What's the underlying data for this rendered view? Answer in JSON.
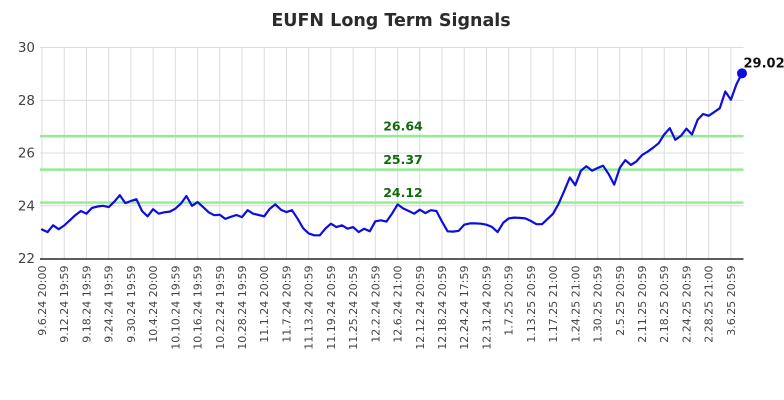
{
  "page": {
    "background": "#ffffff"
  },
  "chart_data": {
    "type": "line",
    "title": "EUFN Long Term Signals",
    "title_color": "#2b2b2b",
    "line_color": "#0d0de0",
    "grid_color": "#dcdcdc",
    "axis_color": "#262626",
    "tick_label_color": "#444444",
    "signal_line_color": "#90ee90",
    "signal_label_color": "#0e6b0e",
    "last_label_color": "#111111",
    "grid": true,
    "ylim": [
      22,
      30
    ],
    "y_ticks": [
      22,
      24,
      26,
      28,
      30
    ],
    "ticks_every_n_points": 4,
    "x_tick_labels": [
      "9.6.24 20:00",
      "9.12.24 19:59",
      "9.18.24 19:59",
      "9.24.24 19:59",
      "9.30.24 19:59",
      "10.4.24 20:00",
      "10.10.24 19:59",
      "10.16.24 19:59",
      "10.22.24 19:59",
      "10.28.24 19:59",
      "11.1.24 20:00",
      "11.7.24 20:59",
      "11.13.24 20:59",
      "11.19.24 20:59",
      "11.25.24 20:59",
      "12.2.24 20:59",
      "12.6.24 21:00",
      "12.12.24 20:59",
      "12.18.24 20:59",
      "12.24.24 17:59",
      "12.31.24 20:59",
      "1.7.25 20:59",
      "1.13.25 20:59",
      "1.17.25 21:00",
      "1.24.25 21:00",
      "1.30.25 20:59",
      "2.5.25 20:59",
      "2.11.25 20:59",
      "2.18.25 20:59",
      "2.24.25 20:59",
      "2.28.25 21:00",
      "3.6.25 20:59"
    ],
    "signal_lines": [
      {
        "value": 26.64,
        "label": "26.64"
      },
      {
        "value": 25.37,
        "label": "25.37"
      },
      {
        "value": 24.12,
        "label": "24.12"
      }
    ],
    "last_point_label": "29.02",
    "series": [
      {
        "name": "EUFN",
        "values": [
          23.1,
          23.0,
          23.26,
          23.11,
          23.25,
          23.45,
          23.64,
          23.8,
          23.7,
          23.92,
          23.97,
          24.0,
          23.95,
          24.15,
          24.4,
          24.1,
          24.18,
          24.25,
          23.8,
          23.6,
          23.87,
          23.7,
          23.75,
          23.78,
          23.89,
          24.08,
          24.37,
          24.0,
          24.14,
          23.95,
          23.75,
          23.64,
          23.66,
          23.5,
          23.58,
          23.65,
          23.57,
          23.83,
          23.7,
          23.65,
          23.6,
          23.89,
          24.05,
          23.85,
          23.76,
          23.83,
          23.51,
          23.15,
          22.95,
          22.88,
          22.88,
          23.13,
          23.32,
          23.19,
          23.26,
          23.13,
          23.19,
          23.0,
          23.13,
          23.03,
          23.41,
          23.45,
          23.4,
          23.7,
          24.05,
          23.9,
          23.8,
          23.7,
          23.85,
          23.72,
          23.83,
          23.8,
          23.4,
          23.03,
          23.02,
          23.05,
          23.28,
          23.33,
          23.33,
          23.32,
          23.28,
          23.2,
          23.0,
          23.35,
          23.52,
          23.55,
          23.54,
          23.52,
          23.42,
          23.3,
          23.3,
          23.5,
          23.7,
          24.08,
          24.56,
          25.07,
          24.78,
          25.33,
          25.5,
          25.33,
          25.43,
          25.52,
          25.2,
          24.8,
          25.44,
          25.73,
          25.55,
          25.68,
          25.92,
          26.05,
          26.2,
          26.37,
          26.7,
          26.94,
          26.5,
          26.65,
          26.92,
          26.7,
          27.26,
          27.48,
          27.41,
          27.55,
          27.7,
          28.33,
          28.02,
          28.6,
          29.02
        ]
      }
    ]
  }
}
